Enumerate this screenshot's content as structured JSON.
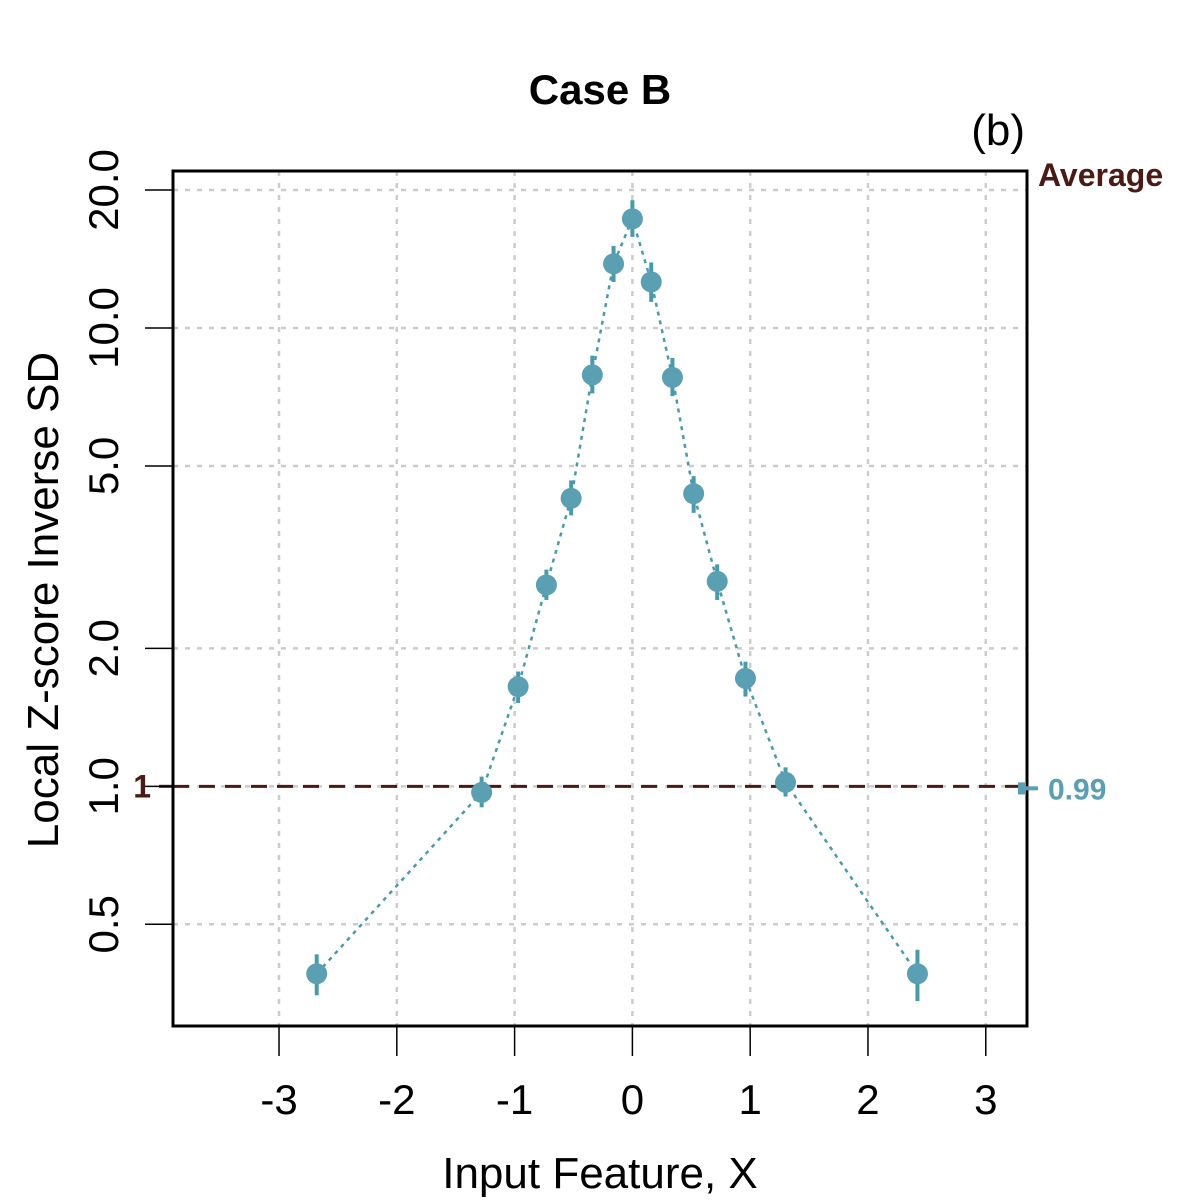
{
  "colors": {
    "series": "#5a9fb2",
    "reference": "#4a1a14",
    "grid": "#cccccc"
  },
  "chart_data": {
    "type": "scatter",
    "title": "Case B",
    "panel_label": "(b)",
    "xlabel": "Input Feature, X",
    "ylabel": "Local Z-score Inverse SD",
    "y_scale": "log",
    "xlim": [
      -3.9,
      3.35
    ],
    "ylim": [
      0.3,
      22
    ],
    "x_ticks": [
      -3,
      -2,
      -1,
      0,
      1,
      2,
      3
    ],
    "x_tick_labels": [
      "-3",
      "-2",
      "-1",
      "0",
      "1",
      "2",
      "3"
    ],
    "y_ticks": [
      0.5,
      1.0,
      2.0,
      5.0,
      10.0,
      20.0
    ],
    "y_tick_labels": [
      "0.5",
      "1.0",
      "2.0",
      "5.0",
      "10.0",
      "20.0"
    ],
    "grid": true,
    "reference_line": {
      "y": 1,
      "label": "1",
      "style": "dashed"
    },
    "average": {
      "label": "Average",
      "value": 0.99,
      "value_label": "0.99",
      "err_low": 0.96,
      "err_high": 1.02
    },
    "series": [
      {
        "name": "Local Z-score Inverse SD",
        "x": [
          -2.68,
          -1.28,
          -0.97,
          -0.73,
          -0.52,
          -0.34,
          -0.16,
          0.0,
          0.16,
          0.34,
          0.52,
          0.72,
          0.96,
          1.3,
          2.42
        ],
        "y": [
          0.39,
          0.97,
          1.65,
          2.75,
          4.25,
          7.9,
          13.8,
          17.3,
          12.6,
          7.8,
          4.35,
          2.8,
          1.72,
          1.02,
          0.39
        ],
        "y_low": [
          0.35,
          0.9,
          1.52,
          2.55,
          3.9,
          7.2,
          12.6,
          15.8,
          11.4,
          7.1,
          3.95,
          2.55,
          1.57,
          0.95,
          0.34
        ],
        "y_high": [
          0.43,
          1.05,
          1.78,
          2.97,
          4.65,
          8.7,
          15.1,
          19.0,
          13.9,
          8.6,
          4.75,
          3.05,
          1.87,
          1.1,
          0.44
        ]
      }
    ]
  }
}
